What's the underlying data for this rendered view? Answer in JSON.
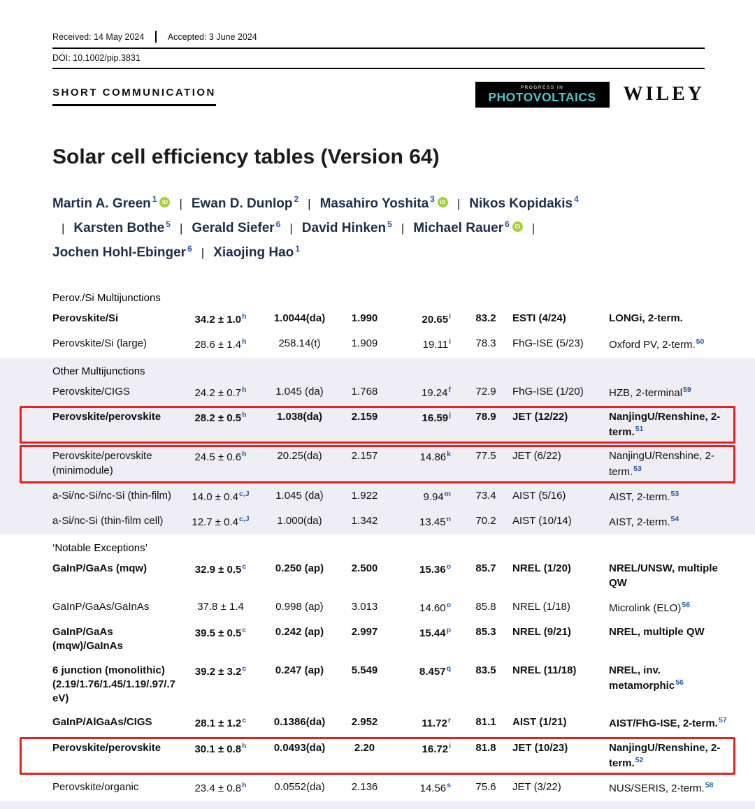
{
  "meta": {
    "received": "Received: 14 May 2024",
    "accepted": "Accepted: 3 June 2024",
    "doi": "DOI: 10.1002/pip.3831",
    "article_type": "SHORT COMMUNICATION",
    "logo_tagline": "PROGRESS IN",
    "logo_name": "PHOTOVOLTAICS",
    "publisher": "WILEY",
    "title": "Solar cell efficiency tables (Version 64)"
  },
  "authors": [
    {
      "name": "Martin A. Green",
      "affiliation": "1",
      "orcid": true
    },
    {
      "name": "Ewan D. Dunlop",
      "affiliation": "2",
      "orcid": false
    },
    {
      "name": "Masahiro Yoshita",
      "affiliation": "3",
      "orcid": true
    },
    {
      "name": "Nikos Kopidakis",
      "affiliation": "4",
      "orcid": false
    },
    {
      "name": "Karsten Bothe",
      "affiliation": "5",
      "orcid": false
    },
    {
      "name": "Gerald Siefer",
      "affiliation": "6",
      "orcid": false
    },
    {
      "name": "David Hinken",
      "affiliation": "5",
      "orcid": false
    },
    {
      "name": "Michael Rauer",
      "affiliation": "6",
      "orcid": true
    },
    {
      "name": "Jochen Hohl-Ebinger",
      "affiliation": "6",
      "orcid": false
    },
    {
      "name": "Xiaojing Hao",
      "affiliation": "1",
      "orcid": false
    }
  ],
  "table": {
    "sections": [
      {
        "title": "Perov./Si Multijunctions",
        "shaded": false,
        "rows": [
          {
            "classification": "Perovskite/Si",
            "bold": true,
            "eff": "34.2 ± 1.0",
            "eff_sup": "h",
            "area": "1.0044(da)",
            "voc": "1.990",
            "jsc": "20.65",
            "jsc_sup": "i",
            "ff": "83.2",
            "centre": "ESTI (4/24)",
            "desc": "LONGi, 2-term.",
            "desc_sup": "",
            "highlight": false
          },
          {
            "classification": "Perovskite/Si (large)",
            "bold": false,
            "eff": "28.6 ± 1.4",
            "eff_sup": "h",
            "area": "258.14(t)",
            "voc": "1.909",
            "jsc": "19.11",
            "jsc_sup": "i",
            "ff": "78.3",
            "centre": "FhG-ISE (5/23)",
            "desc": "Oxford PV, 2-term.",
            "desc_sup": "50",
            "highlight": false
          }
        ]
      },
      {
        "title": "Other Multijunctions",
        "shaded": true,
        "rows": [
          {
            "classification": "Perovskite/CIGS",
            "bold": false,
            "eff": "24.2 ± 0.7",
            "eff_sup": "h",
            "area": "1.045 (da)",
            "voc": "1.768",
            "jsc": "19.24",
            "jsc_sup": "f",
            "ff": "72.9",
            "centre": "FhG-ISE (1/20)",
            "desc": "HZB, 2-terminal",
            "desc_sup": "59",
            "highlight": false
          },
          {
            "classification": "Perovskite/perovskite",
            "bold": true,
            "eff": "28.2 ± 0.5",
            "eff_sup": "h",
            "area": "1.038(da)",
            "voc": "2.159",
            "jsc": "16.59",
            "jsc_sup": "j",
            "ff": "78.9",
            "centre": "JET (12/22)",
            "desc": "NanjingU/Renshine, 2-term.",
            "desc_sup": "51",
            "highlight": true
          },
          {
            "classification": "Perovskite/perovskite (minimodule)",
            "bold": false,
            "eff": "24.5 ± 0.6",
            "eff_sup": "h",
            "area": "20.25(da)",
            "voc": "2.157",
            "jsc": "14.86",
            "jsc_sup": "k",
            "ff": "77.5",
            "centre": "JET (6/22)",
            "desc": "NanjingU/Renshine, 2-term.",
            "desc_sup": "53",
            "highlight": true
          },
          {
            "classification": "a-Si/nc-Si/nc-Si (thin-film)",
            "bold": false,
            "eff": "14.0 ± 0.4",
            "eff_sup": "c,J",
            "area": "1.045 (da)",
            "voc": "1.922",
            "jsc": "9.94",
            "jsc_sup": "m",
            "ff": "73.4",
            "centre": "AIST (5/16)",
            "desc": "AIST, 2-term.",
            "desc_sup": "53",
            "highlight": false
          },
          {
            "classification": "a-Si/nc-Si (thin-film cell)",
            "bold": false,
            "eff": "12.7 ± 0.4",
            "eff_sup": "c,J",
            "area": "1.000(da)",
            "voc": "1.342",
            "jsc": "13.45",
            "jsc_sup": "n",
            "ff": "70.2",
            "centre": "AIST (10/14)",
            "desc": "AIST, 2-term.",
            "desc_sup": "54",
            "highlight": false
          }
        ]
      },
      {
        "title": "‘Notable Exceptions’",
        "shaded": false,
        "rows": [
          {
            "classification": "GaInP/GaAs (mqw)",
            "bold": true,
            "eff": "32.9 ± 0.5",
            "eff_sup": "c",
            "area": "0.250 (ap)",
            "voc": "2.500",
            "jsc": "15.36",
            "jsc_sup": "o",
            "ff": "85.7",
            "centre": "NREL (1/20)",
            "desc": "NREL/UNSW, multiple QW",
            "desc_sup": "",
            "highlight": false
          },
          {
            "classification": "GaInP/GaAs/GaInAs",
            "bold": false,
            "eff": "37.8 ± 1.4",
            "eff_sup": "",
            "area": "0.998 (ap)",
            "voc": "3.013",
            "jsc": "14.60",
            "jsc_sup": "o",
            "ff": "85.8",
            "centre": "NREL (1/18)",
            "desc": "Microlink (ELO)",
            "desc_sup": "56",
            "highlight": false
          },
          {
            "classification": "GaInP/GaAs (mqw)/GaInAs",
            "bold": true,
            "eff": "39.5 ± 0.5",
            "eff_sup": "c",
            "area": "0.242 (ap)",
            "voc": "2.997",
            "jsc": "15.44",
            "jsc_sup": "p",
            "ff": "85.3",
            "centre": "NREL (9/21)",
            "desc": "NREL, multiple QW",
            "desc_sup": "",
            "highlight": false
          },
          {
            "classification": "6 junction (monolithic) (2.19/1.76/1.45/1.19/.97/.7 eV)",
            "bold": true,
            "eff": "39.2 ± 3.2",
            "eff_sup": "c",
            "area": "0.247 (ap)",
            "voc": "5.549",
            "jsc": "8.457",
            "jsc_sup": "q",
            "ff": "83.5",
            "centre": "NREL (11/18)",
            "desc": "NREL, inv. metamorphic",
            "desc_sup": "56",
            "highlight": false
          },
          {
            "classification": "GaInP/AlGaAs/CIGS",
            "bold": true,
            "eff": "28.1 ± 1.2",
            "eff_sup": "c",
            "area": "0.1386(da)",
            "voc": "2.952",
            "jsc": "11.72",
            "jsc_sup": "r",
            "ff": "81.1",
            "centre": "AIST (1/21)",
            "desc": "AIST/FhG-ISE, 2-term.",
            "desc_sup": "57",
            "highlight": false
          },
          {
            "classification": "Perovskite/perovskite",
            "bold": true,
            "eff": "30.1 ± 0.8",
            "eff_sup": "h",
            "area": "0.0493(da)",
            "voc": "2.20",
            "jsc": "16.72",
            "jsc_sup": "i",
            "ff": "81.8",
            "centre": "JET (10/23)",
            "desc": "NanjingU/Renshine, 2-term.",
            "desc_sup": "52",
            "highlight": true
          },
          {
            "classification": "Perovskite/organic",
            "bold": false,
            "eff": "23.4 ± 0.8",
            "eff_sup": "h",
            "area": "0.0552(da)",
            "voc": "2.136",
            "jsc": "14.56",
            "jsc_sup": "s",
            "ff": "75.6",
            "centre": "JET (3/22)",
            "desc": "NUS/SERIS, 2-term.",
            "desc_sup": "58",
            "highlight": false
          }
        ]
      }
    ]
  },
  "colors": {
    "reference_blue": "#2458a6",
    "highlight_red": "#e3211e",
    "section_shade": "#efeef4",
    "logo_teal": "#52c5c5",
    "orcid_green": "#a6ce39",
    "author_navy": "#1c2e4a"
  }
}
